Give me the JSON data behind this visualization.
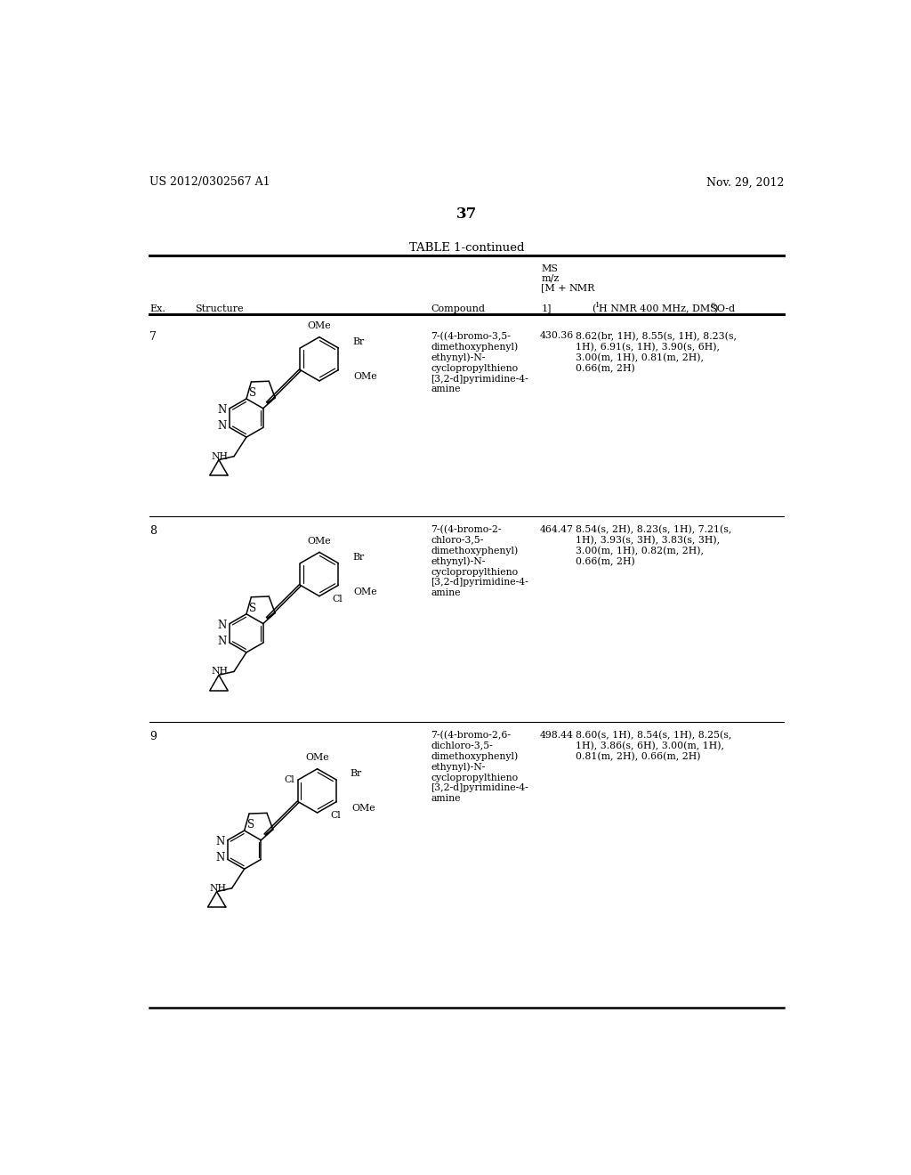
{
  "patent_number": "US 2012/0302567 A1",
  "date": "Nov. 29, 2012",
  "page_number": "37",
  "table_title": "TABLE 1-continued",
  "rows": [
    {
      "ex": "7",
      "compound": "7-((4-bromo-3,5-\ndimethoxyphenyl)\nethynyl)-N-\ncyclopropylthieno\n[3,2-d]pyrimidine-4-\namine",
      "ms": "430.36",
      "nmr": "8.62(br, 1H), 8.55(s, 1H), 8.23(s,\n1H), 6.91(s, 1H), 3.90(s, 6H),\n3.00(m, 1H), 0.81(m, 2H),\n0.66(m, 2H)"
    },
    {
      "ex": "8",
      "compound": "7-((4-bromo-2-\nchloro-3,5-\ndimethoxyphenyl)\nethynyl)-N-\ncyclopropylthieno\n[3,2-d]pyrimidine-4-\namine",
      "ms": "464.47",
      "nmr": "8.54(s, 2H), 8.23(s, 1H), 7.21(s,\n1H), 3.93(s, 3H), 3.83(s, 3H),\n3.00(m, 1H), 0.82(m, 2H),\n0.66(m, 2H)"
    },
    {
      "ex": "9",
      "compound": "7-((4-bromo-2,6-\ndichloro-3,5-\ndimethoxyphenyl)\nethynyl)-N-\ncyclopropylthieno\n[3,2-d]pyrimidine-4-\namine",
      "ms": "498.44",
      "nmr": "8.60(s, 1H), 8.54(s, 1H), 8.25(s,\n1H), 3.86(s, 6H), 3.00(m, 1H),\n0.81(m, 2H), 0.66(m, 2H)"
    }
  ],
  "bg_color": "#ffffff"
}
